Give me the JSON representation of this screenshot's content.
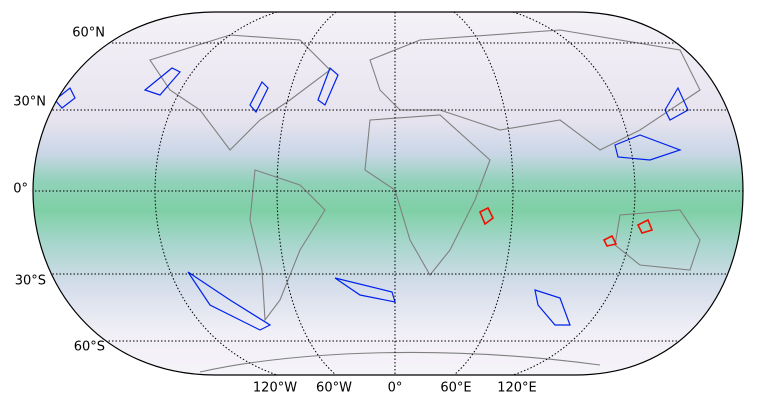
{
  "lat_labels": [
    "60°N",
    "30°N",
    "0°",
    "30°S",
    "60°S"
  ],
  "lon_labels": [
    "120°W",
    "60°W",
    "0°",
    "60°E",
    "120°E"
  ]
}
